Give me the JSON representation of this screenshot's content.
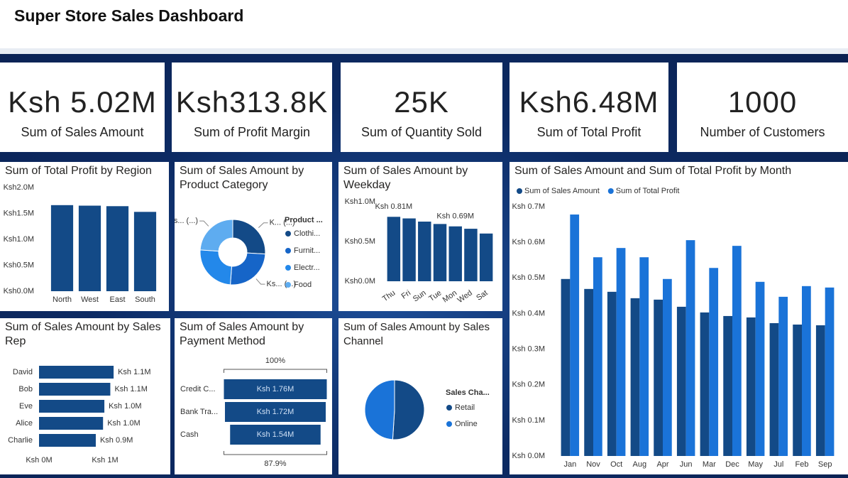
{
  "header": {
    "title": "Super Store Sales Dashboard"
  },
  "cards": [
    {
      "value": "Ksh 5.02M",
      "label": "Sum of Sales Amount"
    },
    {
      "value": "Ksh313.8K",
      "label": "Sum of Profit Margin"
    },
    {
      "value": "25K",
      "label": "Sum of Quantity Sold"
    },
    {
      "value": "Ksh6.48M",
      "label": "Sum of Total Profit"
    },
    {
      "value": "1000",
      "label": "Number of Customers"
    }
  ],
  "chart_data": [
    {
      "type": "bar",
      "title": "Sum of Total Profit by Region",
      "categories": [
        "North",
        "West",
        "East",
        "South"
      ],
      "values": [
        1660000,
        1650000,
        1640000,
        1530000
      ],
      "color": "#134a87",
      "ylim": [
        0,
        2000000
      ],
      "yticks": [
        {
          "value": 0,
          "label": "Ksh0.0M"
        },
        {
          "value": 500000,
          "label": "Ksh0.5M"
        },
        {
          "value": 1000000,
          "label": "Ksh1.0M"
        },
        {
          "value": 1500000,
          "label": "Ksh1.5M"
        },
        {
          "value": 2000000,
          "label": "Ksh2.0M"
        }
      ]
    },
    {
      "type": "pie",
      "donut": true,
      "title": "Sum of Sales Amount by Product Category",
      "legend_title": "Product ...",
      "categories": [
        "Clothi...",
        "Furnit...",
        "Electr...",
        "Food"
      ],
      "values": [
        1300000,
        1270000,
        1250000,
        1200000
      ],
      "value_labels": [
        "K... (...)",
        "Ks... (...)",
        null,
        "Ks... (...)"
      ],
      "colors": [
        "#134a87",
        "#1665c8",
        "#2388ea",
        "#5eacf0"
      ]
    },
    {
      "type": "bar",
      "title": "Sum of Sales Amount by Weekday",
      "categories": [
        "Thu",
        "Fri",
        "Sun",
        "Tue",
        "Mon",
        "Wed",
        "Sat"
      ],
      "values": [
        810000,
        790000,
        750000,
        720000,
        690000,
        660000,
        600000
      ],
      "value_labels": [
        "Ksh 0.81M",
        null,
        null,
        null,
        "Ksh 0.69M",
        null,
        null
      ],
      "color": "#134a87",
      "ylim": [
        0,
        1000000
      ],
      "yticks": [
        {
          "value": 0,
          "label": "Ksh0.0M"
        },
        {
          "value": 500000,
          "label": "Ksh0.5M"
        },
        {
          "value": 1000000,
          "label": "Ksh1.0M"
        }
      ]
    },
    {
      "type": "bar",
      "title": "Sum of Sales Amount and Sum of Total Profit by Month",
      "categories": [
        "Jan",
        "Nov",
        "Oct",
        "Aug",
        "Apr",
        "Jun",
        "Mar",
        "Dec",
        "May",
        "Jul",
        "Feb",
        "Sep"
      ],
      "series": [
        {
          "name": "Sum of Sales Amount",
          "color": "#134a87",
          "values": [
            497000,
            469000,
            461000,
            443000,
            439000,
            419000,
            403000,
            393000,
            389000,
            373000,
            369000,
            367000
          ]
        },
        {
          "name": "Sum of Total Profit",
          "color": "#1a73d8",
          "values": [
            678000,
            558000,
            584000,
            558000,
            497000,
            606000,
            528000,
            590000,
            489000,
            447000,
            477000,
            473000
          ]
        }
      ],
      "ylim": [
        0,
        700000
      ],
      "yticks": [
        {
          "value": 0,
          "label": "Ksh 0.0M"
        },
        {
          "value": 100000,
          "label": "Ksh 0.1M"
        },
        {
          "value": 200000,
          "label": "Ksh 0.2M"
        },
        {
          "value": 300000,
          "label": "Ksh 0.3M"
        },
        {
          "value": 400000,
          "label": "Ksh 0.4M"
        },
        {
          "value": 500000,
          "label": "Ksh 0.5M"
        },
        {
          "value": 600000,
          "label": "Ksh 0.6M"
        },
        {
          "value": 700000,
          "label": "Ksh 0.7M"
        }
      ]
    },
    {
      "type": "barh",
      "title": "Sum of Sales Amount by Sales Rep",
      "categories": [
        "David",
        "Bob",
        "Eve",
        "Alice",
        "Charlie"
      ],
      "values": [
        1130000,
        1080000,
        990000,
        970000,
        860000
      ],
      "value_labels": [
        "Ksh 1.1M",
        "Ksh 1.1M",
        "Ksh 1.0M",
        "Ksh 1.0M",
        "Ksh 0.9M"
      ],
      "color": "#134a87",
      "xlim": [
        0,
        1500000
      ],
      "xticks": [
        {
          "value": 0,
          "label": "Ksh 0M"
        },
        {
          "value": 1000000,
          "label": "Ksh 1M"
        }
      ]
    },
    {
      "type": "funnel",
      "title": "Sum of Sales Amount by Payment Method",
      "categories": [
        "Credit C...",
        "Bank Tra...",
        "Cash"
      ],
      "values": [
        1756000,
        1720000,
        1544000
      ],
      "value_labels": [
        "Ksh 1.76M",
        "Ksh 1.72M",
        "Ksh 1.54M"
      ],
      "color": "#134a87",
      "top_label": "100%",
      "bottom_label": "87.9%"
    },
    {
      "type": "pie",
      "donut": false,
      "title": "Sum of Sales Amount by Sales Channel",
      "legend_title": "Sales Cha...",
      "categories": [
        "Retail",
        "Online"
      ],
      "values": [
        2560000,
        2460000
      ],
      "colors": [
        "#134a87",
        "#1a73d8"
      ]
    }
  ]
}
